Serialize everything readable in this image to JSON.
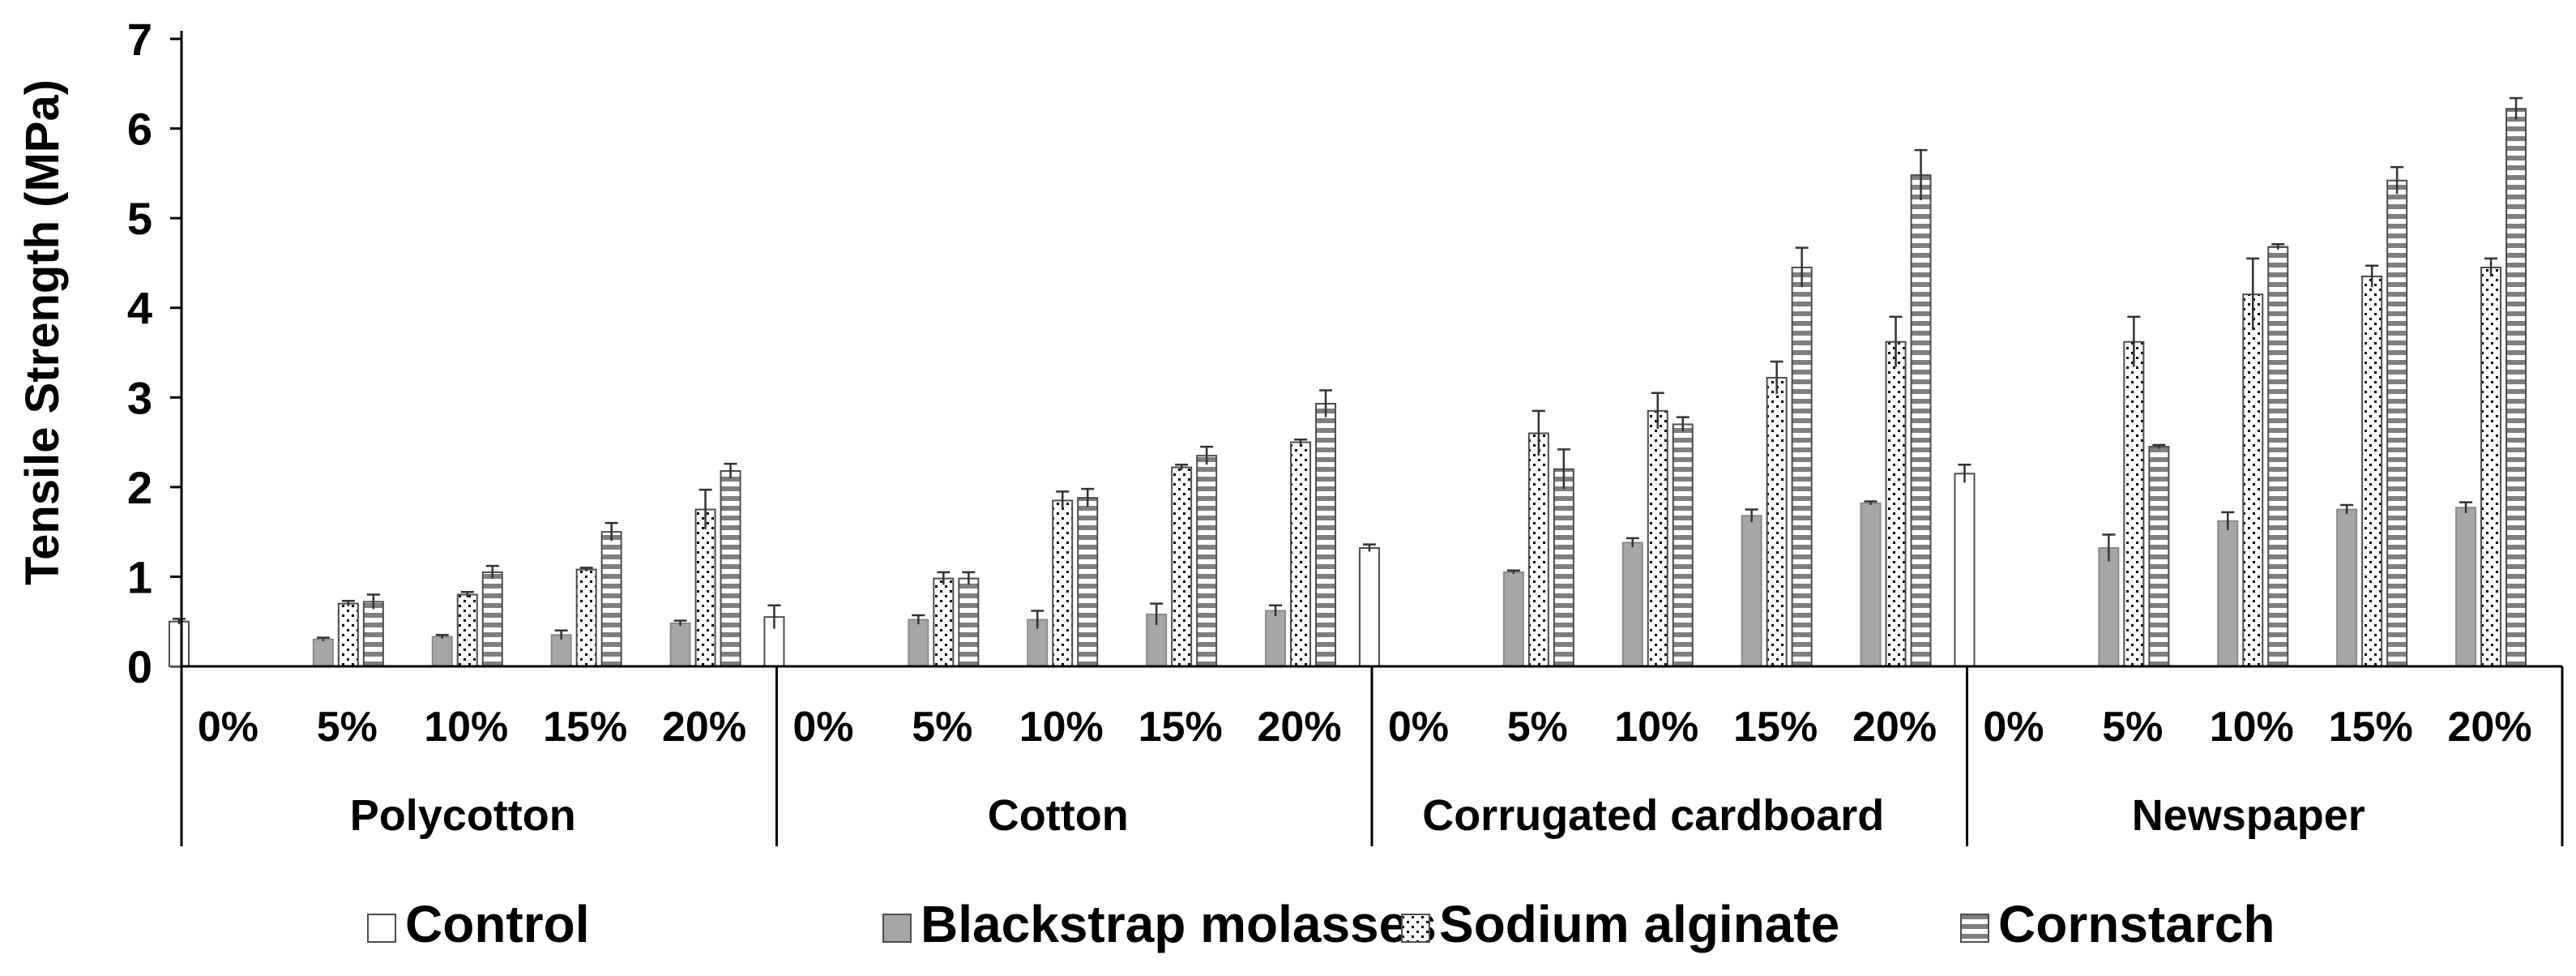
{
  "chart_data": {
    "type": "bar",
    "title": "",
    "xlabel": "",
    "ylabel": "Tensile Strength (MPa)",
    "ylim": [
      0,
      7
    ],
    "yticks": [
      "0",
      "1",
      "2",
      "3",
      "4",
      "5",
      "6",
      "7"
    ],
    "grid": false,
    "legend_position": "bottom",
    "groups": [
      {
        "name": "Polycotton",
        "categories": [
          "0%",
          "5%",
          "10%",
          "15%",
          "20%"
        ]
      },
      {
        "name": "Cotton",
        "categories": [
          "0%",
          "5%",
          "10%",
          "15%",
          "20%"
        ]
      },
      {
        "name": "Corrugated cardboard",
        "categories": [
          "0%",
          "5%",
          "10%",
          "15%",
          "20%"
        ]
      },
      {
        "name": "Newspaper",
        "categories": [
          "0%",
          "5%",
          "10%",
          "15%",
          "20%"
        ]
      }
    ],
    "series": [
      {
        "name": "Control",
        "pattern": "white",
        "color": "#ffffff",
        "values": [
          [
            0.5,
            null,
            null,
            null,
            null
          ],
          [
            0.55,
            null,
            null,
            null,
            null
          ],
          [
            1.32,
            null,
            null,
            null,
            null
          ],
          [
            2.15,
            null,
            null,
            null,
            null
          ]
        ],
        "errors": [
          [
            0.03,
            null,
            null,
            null,
            null
          ],
          [
            0.13,
            null,
            null,
            null,
            null
          ],
          [
            0.04,
            null,
            null,
            null,
            null
          ],
          [
            0.1,
            null,
            null,
            null,
            null
          ]
        ]
      },
      {
        "name": "Blackstrap molasses",
        "pattern": "gray",
        "color": "#a6a6a6",
        "values": [
          [
            null,
            0.3,
            0.33,
            0.35,
            0.48
          ],
          [
            null,
            0.52,
            0.52,
            0.58,
            0.62
          ],
          [
            null,
            1.05,
            1.38,
            1.68,
            1.82
          ],
          [
            null,
            1.32,
            1.62,
            1.75,
            1.77
          ]
        ],
        "errors": [
          [
            null,
            0.02,
            0.02,
            0.05,
            0.03
          ],
          [
            null,
            0.05,
            0.1,
            0.12,
            0.06
          ],
          [
            null,
            0.02,
            0.05,
            0.07,
            0.02
          ],
          [
            null,
            0.15,
            0.1,
            0.05,
            0.06
          ]
        ]
      },
      {
        "name": "Sodium alginate",
        "pattern": "dotted",
        "color": "#ffffff",
        "values": [
          [
            null,
            0.7,
            0.8,
            1.08,
            1.75
          ],
          [
            null,
            0.98,
            1.85,
            2.22,
            2.5
          ],
          [
            null,
            2.6,
            2.85,
            3.22,
            3.62
          ],
          [
            null,
            3.62,
            4.15,
            4.35,
            4.45
          ]
        ],
        "errors": [
          [
            null,
            0.03,
            0.03,
            0.02,
            0.22
          ],
          [
            null,
            0.07,
            0.1,
            0.03,
            0.03
          ],
          [
            null,
            0.25,
            0.2,
            0.18,
            0.28
          ],
          [
            null,
            0.28,
            0.4,
            0.12,
            0.1
          ]
        ]
      },
      {
        "name": "Cornstarch",
        "pattern": "hstripe",
        "color": "#7f7f7f",
        "values": [
          [
            null,
            0.72,
            1.05,
            1.5,
            2.18
          ],
          [
            null,
            0.98,
            1.88,
            2.35,
            2.93
          ],
          [
            null,
            2.2,
            2.7,
            4.45,
            5.48
          ],
          [
            null,
            2.45,
            4.68,
            5.42,
            6.22
          ]
        ],
        "errors": [
          [
            null,
            0.08,
            0.07,
            0.1,
            0.08
          ],
          [
            null,
            0.07,
            0.1,
            0.1,
            0.15
          ],
          [
            null,
            0.22,
            0.08,
            0.22,
            0.28
          ],
          [
            null,
            0.02,
            0.03,
            0.15,
            0.12
          ]
        ]
      }
    ]
  }
}
